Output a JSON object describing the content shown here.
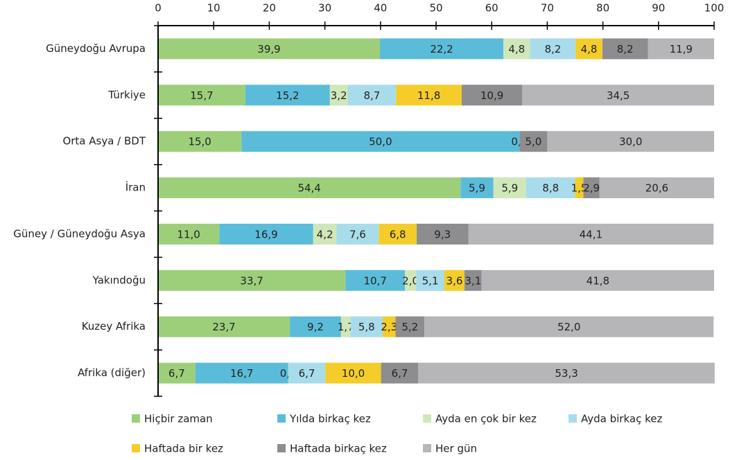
{
  "chart_data": {
    "type": "stacked-barh",
    "categories": [
      "Güneydoğu Avrupa",
      "Türkiye",
      "Orta Asya / BDT",
      "İran",
      "Güney / Güneydoğu Asya",
      "Yakındoğu",
      "Kuzey Afrika",
      "Afrika (diğer)"
    ],
    "series": [
      {
        "name": "Hiçbir zaman",
        "color": "#9dcf7b",
        "values": [
          39.9,
          15.7,
          15.0,
          54.4,
          11.0,
          33.7,
          23.7,
          6.7
        ],
        "value_labels": [
          "39,9",
          "15,7",
          "15,0",
          "54,4",
          "11,0",
          "33,7",
          "23,7",
          "6,7"
        ]
      },
      {
        "name": "Yılda birkaç kez",
        "color": "#5bbcd9",
        "values": [
          22.2,
          15.2,
          50.0,
          5.9,
          16.9,
          10.7,
          9.2,
          16.7
        ],
        "value_labels": [
          "22,2",
          "15,2",
          "50,0",
          "5,9",
          "16,9",
          "10,7",
          "9,2",
          "16,7"
        ]
      },
      {
        "name": "Ayda en çok bir kez",
        "color": "#d0e7b9",
        "values": [
          4.8,
          3.2,
          0.0,
          5.9,
          4.2,
          2.0,
          1.7,
          0.0
        ],
        "value_labels": [
          "4,8",
          "3,2",
          "0,0",
          "5,9",
          "4,2",
          "2,0",
          "1,7",
          "0,0"
        ]
      },
      {
        "name": "Ayda birkaç kez",
        "color": "#a9dcea",
        "values": [
          8.2,
          8.7,
          null,
          8.8,
          7.6,
          5.1,
          5.8,
          6.7
        ],
        "value_labels": [
          "8,2",
          "8,7",
          null,
          "8,8",
          "7,6",
          "5,1",
          "5,8",
          "6,7"
        ]
      },
      {
        "name": "Haftada bir kez",
        "color": "#f4cd2b",
        "values": [
          4.8,
          11.8,
          null,
          1.5,
          6.8,
          3.6,
          2.3,
          10.0
        ],
        "value_labels": [
          "4,8",
          "11,8",
          null,
          "1,5",
          "6,8",
          "3,6",
          "2,3",
          "10,0"
        ]
      },
      {
        "name": "Haftada birkaç kez",
        "color": "#8d8d90",
        "values": [
          8.2,
          10.9,
          5.0,
          2.9,
          9.3,
          3.1,
          5.2,
          6.7
        ],
        "value_labels": [
          "8,2",
          "10,9",
          "5,0",
          "2,9",
          "9,3",
          "3,1",
          "5,2",
          "6,7"
        ]
      },
      {
        "name": "Her gün",
        "color": "#b6b6b9",
        "values": [
          11.9,
          34.5,
          30.0,
          20.6,
          44.1,
          41.8,
          52.0,
          53.3
        ],
        "value_labels": [
          "11,9",
          "34,5",
          "30,0",
          "20,6",
          "44,1",
          "41,8",
          "52,0",
          "53,3"
        ]
      }
    ],
    "xlim": [
      0,
      100
    ],
    "xticks": [
      0,
      10,
      20,
      30,
      40,
      50,
      60,
      70,
      80,
      90,
      100
    ]
  }
}
